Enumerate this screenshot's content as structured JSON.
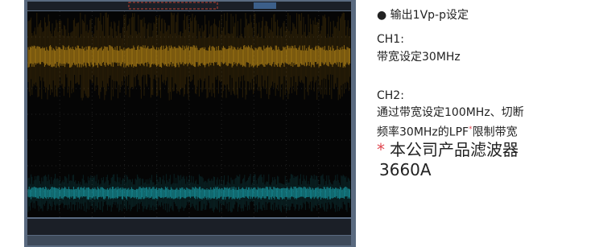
{
  "bullet_title": "● 输出1Vp-p设定",
  "ch1": {
    "label": "CH1:",
    "text": "带宽设定30MHz"
  },
  "ch2": {
    "label": "CH2:",
    "line1": "通过带宽设定100MHz、切断",
    "line2_start": "频率30MHz的LPF",
    "asterisk": "*",
    "line2_end": "限制带宽"
  },
  "note": {
    "asterisk": "*",
    "line1": "本公司产品滤波器",
    "line2": "3660A"
  }
}
